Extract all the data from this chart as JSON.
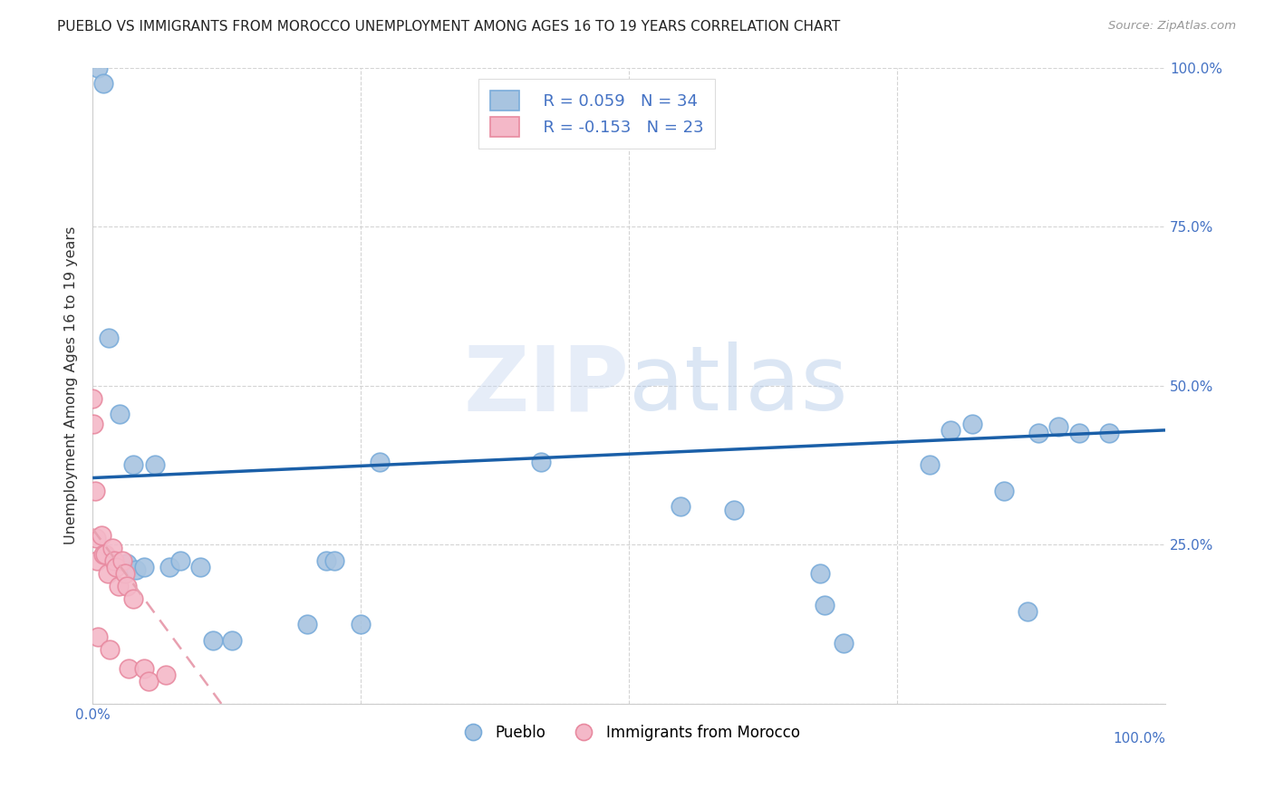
{
  "title": "PUEBLO VS IMMIGRANTS FROM MOROCCO UNEMPLOYMENT AMONG AGES 16 TO 19 YEARS CORRELATION CHART",
  "source": "Source: ZipAtlas.com",
  "ylabel": "Unemployment Among Ages 16 to 19 years",
  "xlabel": "",
  "xlim": [
    0,
    1.0
  ],
  "ylim": [
    0,
    1.0
  ],
  "xticks": [
    0.0,
    0.25,
    0.5,
    0.75,
    1.0
  ],
  "yticks": [
    0.0,
    0.25,
    0.5,
    0.75,
    1.0
  ],
  "xticklabels_left": [
    "0.0%",
    "",
    "",
    "",
    ""
  ],
  "xticklabels_right": "100.0%",
  "yticklabels_right": [
    "",
    "25.0%",
    "50.0%",
    "75.0%",
    "100.0%"
  ],
  "pueblo_color": "#a8c4e0",
  "pueblo_edge": "#7aacda",
  "morocco_color": "#f4b8c8",
  "morocco_edge": "#e88aa0",
  "trendline_pueblo_color": "#1a5fa8",
  "trendline_morocco_color": "#e8a0b0",
  "legend_r_pueblo": "R = 0.059",
  "legend_n_pueblo": "N = 34",
  "legend_r_morocco": "R = -0.153",
  "legend_n_morocco": "N = 23",
  "tick_color": "#4472c4",
  "pueblo_x": [
    0.005,
    0.01,
    0.015,
    0.025,
    0.032,
    0.038,
    0.04,
    0.048,
    0.058,
    0.072,
    0.082,
    0.1,
    0.112,
    0.13,
    0.2,
    0.218,
    0.225,
    0.25,
    0.268,
    0.418,
    0.548,
    0.598,
    0.678,
    0.682,
    0.7,
    0.78,
    0.8,
    0.82,
    0.85,
    0.872,
    0.882,
    0.9,
    0.92,
    0.948
  ],
  "pueblo_y": [
    1.0,
    0.975,
    0.575,
    0.455,
    0.22,
    0.375,
    0.21,
    0.215,
    0.375,
    0.215,
    0.225,
    0.215,
    0.1,
    0.1,
    0.125,
    0.225,
    0.225,
    0.125,
    0.38,
    0.38,
    0.31,
    0.305,
    0.205,
    0.155,
    0.095,
    0.375,
    0.43,
    0.44,
    0.335,
    0.145,
    0.425,
    0.435,
    0.425,
    0.425
  ],
  "morocco_x": [
    0.0,
    0.001,
    0.002,
    0.003,
    0.004,
    0.005,
    0.008,
    0.01,
    0.012,
    0.014,
    0.016,
    0.018,
    0.02,
    0.022,
    0.024,
    0.028,
    0.03,
    0.032,
    0.034,
    0.038,
    0.048,
    0.052,
    0.068
  ],
  "morocco_y": [
    0.48,
    0.44,
    0.335,
    0.26,
    0.225,
    0.105,
    0.265,
    0.235,
    0.235,
    0.205,
    0.085,
    0.245,
    0.225,
    0.215,
    0.185,
    0.225,
    0.205,
    0.185,
    0.055,
    0.165,
    0.055,
    0.035,
    0.045
  ],
  "pueblo_trend_x": [
    0.0,
    1.0
  ],
  "pueblo_trend_y": [
    0.355,
    0.43
  ],
  "morocco_trend_x": [
    0.0,
    0.12
  ],
  "morocco_trend_y": [
    0.275,
    0.0
  ],
  "watermark_zip": "ZIP",
  "watermark_atlas": "atlas",
  "background_color": "#ffffff",
  "grid_color": "#d0d0d0"
}
